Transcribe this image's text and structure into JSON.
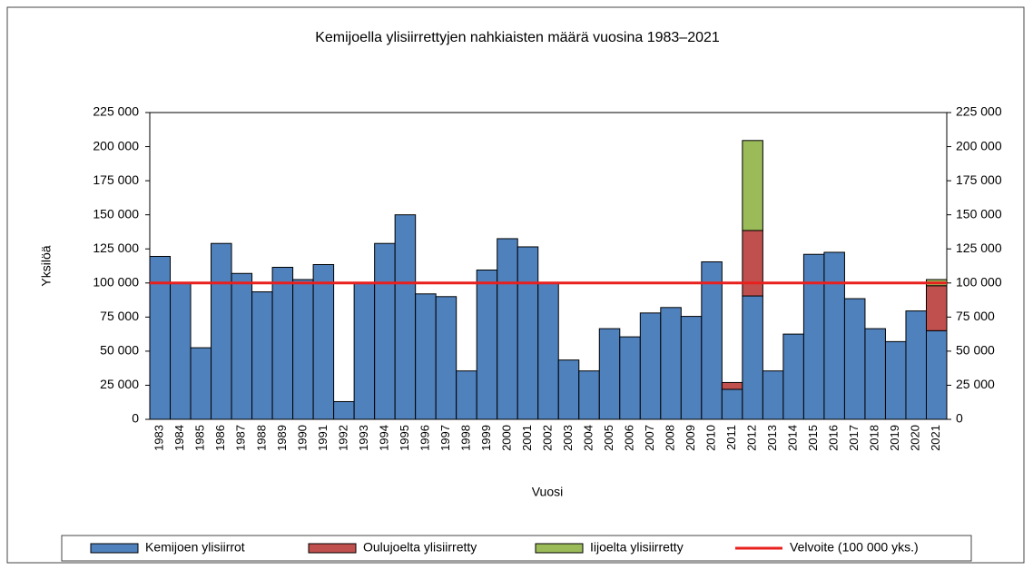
{
  "chart_data": {
    "type": "stacked_bar",
    "title": "Kemijoella ylisiirrettyjen nahkiaisten määrä vuosina 1983–2021",
    "x_label": "Vuosi",
    "y_label": "Yksilöä",
    "categories": [
      "1983",
      "1984",
      "1985",
      "1986",
      "1987",
      "1988",
      "1989",
      "1990",
      "1991",
      "1992",
      "1993",
      "1994",
      "1995",
      "1996",
      "1997",
      "1998",
      "1999",
      "2000",
      "2001",
      "2002",
      "2003",
      "2004",
      "2005",
      "2006",
      "2007",
      "2008",
      "2009",
      "2010",
      "2011",
      "2012",
      "2013",
      "2014",
      "2015",
      "2016",
      "2017",
      "2018",
      "2019",
      "2020",
      "2021"
    ],
    "series": [
      {
        "name": "Kemijoen ylisiirrot",
        "color": "#4f81bd",
        "values": [
          119500,
          100000,
          52500,
          129000,
          107000,
          93500,
          111500,
          102500,
          113500,
          13000,
          100000,
          129000,
          150000,
          92000,
          90000,
          35500,
          109500,
          132500,
          126500,
          100000,
          43500,
          35500,
          66500,
          60500,
          78000,
          82000,
          75500,
          115500,
          22000,
          90500,
          35500,
          62500,
          121000,
          122500,
          88500,
          66500,
          57000,
          79500,
          65000
        ]
      },
      {
        "name": "Oulujoelta ylisiirretty",
        "color": "#c0504d",
        "values": [
          null,
          null,
          null,
          null,
          null,
          null,
          null,
          null,
          null,
          null,
          null,
          null,
          null,
          null,
          null,
          null,
          null,
          null,
          null,
          null,
          null,
          null,
          null,
          null,
          null,
          null,
          null,
          null,
          5000,
          48000,
          null,
          null,
          null,
          null,
          null,
          null,
          null,
          null,
          33000
        ]
      },
      {
        "name": "Iijoelta ylisiirretty",
        "color": "#9bbb59",
        "values": [
          null,
          null,
          null,
          null,
          null,
          null,
          null,
          null,
          null,
          null,
          null,
          null,
          null,
          null,
          null,
          null,
          null,
          null,
          null,
          null,
          null,
          null,
          null,
          null,
          null,
          null,
          null,
          null,
          null,
          66000,
          null,
          null,
          null,
          null,
          null,
          null,
          null,
          null,
          4500
        ]
      }
    ],
    "reference_line": {
      "name": "Velvoite (100 000 yks.)",
      "color": "#e8201e",
      "value": 100000
    },
    "ylim": [
      0,
      225000
    ],
    "yticks": [
      0,
      {
        "value": 25000,
        "label": "25 000"
      },
      {
        "value": 50000,
        "label": "50 000"
      },
      {
        "value": 75000,
        "label": "75 000"
      },
      {
        "value": 100000,
        "label": "100 000"
      },
      {
        "value": 125000,
        "label": "125 000"
      },
      {
        "value": 150000,
        "label": "150 000"
      },
      {
        "value": 175000,
        "label": "175 000"
      },
      {
        "value": 200000,
        "label": "200 000"
      },
      {
        "value": 225000,
        "label": "225 000"
      }
    ],
    "legend": "bottom"
  }
}
